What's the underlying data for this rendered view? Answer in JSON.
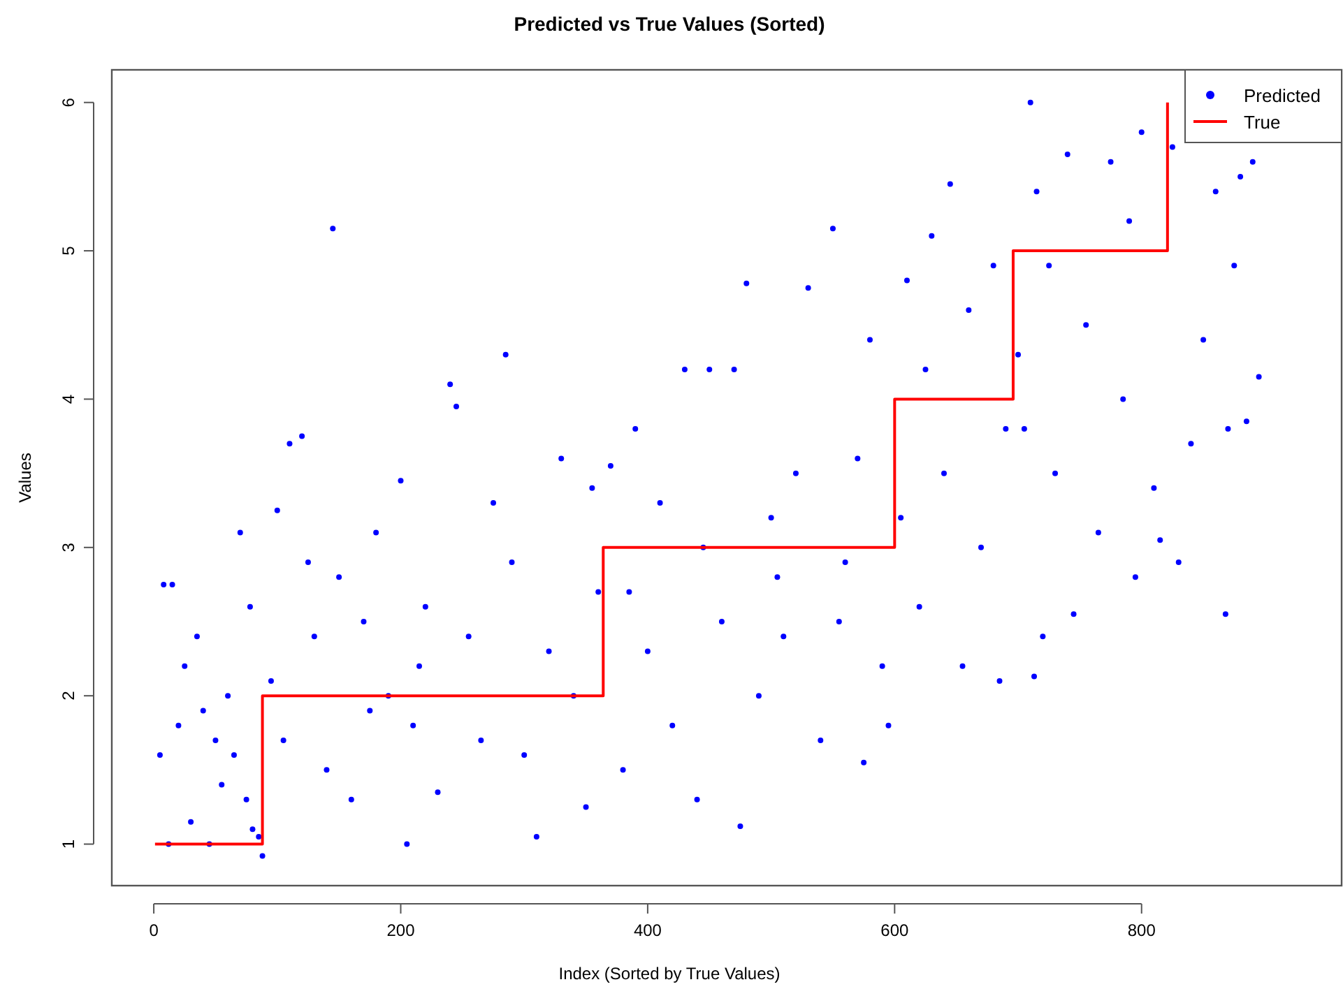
{
  "chart_data": {
    "type": "scatter",
    "title": "Predicted vs True Values (Sorted)",
    "xlabel": "Index (Sorted by True Values)",
    "ylabel": "Values",
    "xlim": [
      -34,
      962
    ],
    "ylim": [
      0.72,
      6.22
    ],
    "xticks": [
      0,
      200,
      400,
      600,
      800
    ],
    "yticks": [
      1,
      2,
      3,
      4,
      5,
      6
    ],
    "grid": false,
    "legend": "top right",
    "series": [
      {
        "name": "Predicted",
        "marker": "circle",
        "color": "#0000ff",
        "x": [
          5,
          8,
          15,
          12,
          20,
          25,
          30,
          35,
          40,
          45,
          50,
          55,
          60,
          65,
          70,
          75,
          80,
          85,
          88,
          78,
          95,
          100,
          110,
          120,
          105,
          130,
          140,
          145,
          150,
          160,
          170,
          180,
          190,
          200,
          205,
          210,
          220,
          230,
          240,
          245,
          255,
          265,
          275,
          285,
          290,
          300,
          310,
          320,
          330,
          340,
          350,
          355,
          360,
          125,
          175,
          215,
          370,
          380,
          390,
          400,
          410,
          420,
          430,
          440,
          450,
          460,
          470,
          475,
          480,
          490,
          500,
          510,
          520,
          530,
          540,
          550,
          560,
          570,
          575,
          580,
          590,
          595,
          385,
          445,
          505,
          555,
          605,
          610,
          620,
          630,
          640,
          645,
          655,
          660,
          670,
          680,
          685,
          690,
          625,
          700,
          710,
          715,
          720,
          730,
          740,
          745,
          755,
          765,
          775,
          785,
          795,
          800,
          810,
          815,
          705,
          725,
          790,
          713,
          825,
          830,
          840,
          850,
          860,
          868,
          875,
          885,
          890,
          895,
          880,
          870
        ],
        "values": [
          1.6,
          2.75,
          2.75,
          1.0,
          1.8,
          2.2,
          1.15,
          2.4,
          1.9,
          1.0,
          1.7,
          1.4,
          2.0,
          1.6,
          3.1,
          1.3,
          1.1,
          1.05,
          0.92,
          2.6,
          2.1,
          3.25,
          3.7,
          3.75,
          1.7,
          2.4,
          1.5,
          5.15,
          2.8,
          1.3,
          2.5,
          3.1,
          2.0,
          3.45,
          1.0,
          1.8,
          2.6,
          1.35,
          4.1,
          3.95,
          2.4,
          1.7,
          3.3,
          4.3,
          2.9,
          1.6,
          1.05,
          2.3,
          3.6,
          2.0,
          1.25,
          3.4,
          2.7,
          2.9,
          1.9,
          2.2,
          3.55,
          1.5,
          3.8,
          2.3,
          3.3,
          1.8,
          4.2,
          1.3,
          4.2,
          2.5,
          4.2,
          1.12,
          4.78,
          2.0,
          3.2,
          2.4,
          3.5,
          4.75,
          1.7,
          5.15,
          2.9,
          3.6,
          1.55,
          4.4,
          2.2,
          1.8,
          2.7,
          3.0,
          2.8,
          2.5,
          3.2,
          4.8,
          2.6,
          5.1,
          3.5,
          5.45,
          2.2,
          4.6,
          3.0,
          4.9,
          2.1,
          3.8,
          4.2,
          4.3,
          6.0,
          5.4,
          2.4,
          3.5,
          5.65,
          2.55,
          4.5,
          3.1,
          5.6,
          4.0,
          2.8,
          5.8,
          3.4,
          3.05,
          3.8,
          4.9,
          5.2,
          2.13,
          5.7,
          2.9,
          3.7,
          4.4,
          5.4,
          2.55,
          4.9,
          3.85,
          5.6,
          4.15,
          5.5,
          3.8
        ]
      },
      {
        "name": "True",
        "type": "step",
        "marker": "none",
        "color": "#ff0000",
        "x": [
          1,
          88,
          364,
          600,
          696,
          821
        ],
        "values": [
          1,
          2,
          3,
          4,
          5,
          6
        ]
      }
    ]
  }
}
